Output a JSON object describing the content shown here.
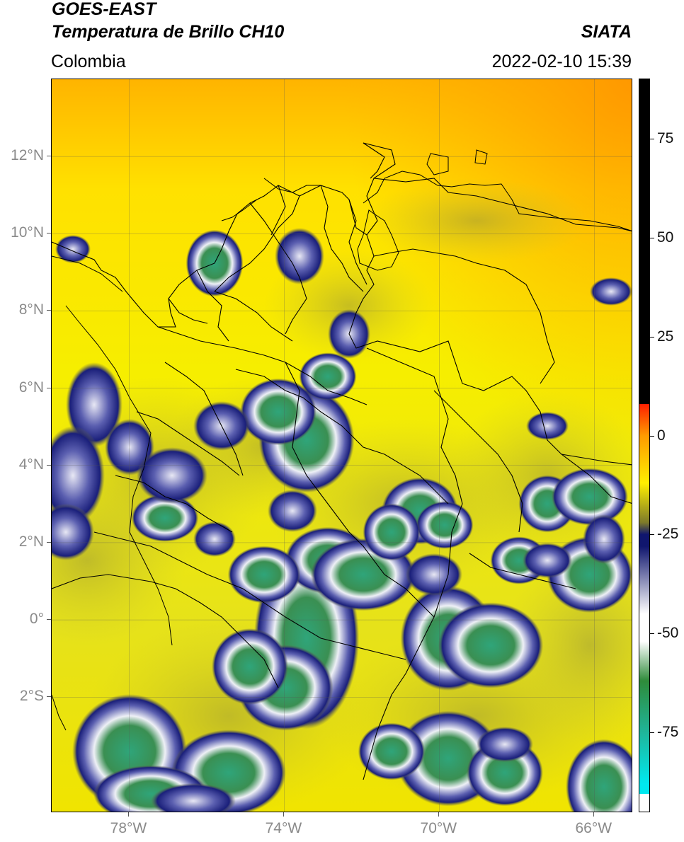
{
  "header": {
    "title_line1": "GOES-EAST",
    "title_line2": "Temperatura de Brillo CH10",
    "brand": "SIATA",
    "region": "Colombia",
    "datetime": "2022-02-10 15:39"
  },
  "map": {
    "lat_labels": [
      "12°N",
      "10°N",
      "8°N",
      "6°N",
      "4°N",
      "2°N",
      "0°",
      "2°S"
    ],
    "lon_labels": [
      "78°W",
      "74°W",
      "70°W",
      "66°W"
    ],
    "lat_range": [
      -5,
      14
    ],
    "lon_range": [
      -80,
      -65
    ],
    "gridlines": true,
    "background_color": "#f2ec00",
    "cloud_colors": {
      "cold_core": "#2e9a6a",
      "edge": "#1a1f7a",
      "mid": "#e8e8f4"
    }
  },
  "colorbar": {
    "tick_labels": [
      "75",
      "50",
      "25",
      "0",
      "-25",
      "-50",
      "-75"
    ],
    "range": [
      -95,
      90
    ],
    "colors": {
      "warm_black": "#000000",
      "red": "#ff2000",
      "orange": "#ff9a00",
      "yellow": "#ffef00",
      "olive": "#7d7a2a",
      "navy": "#10166e",
      "white": "#ffffff",
      "green": "#2e8b3a",
      "teal": "#1fb59a",
      "cyan": "#00e8f0"
    }
  }
}
